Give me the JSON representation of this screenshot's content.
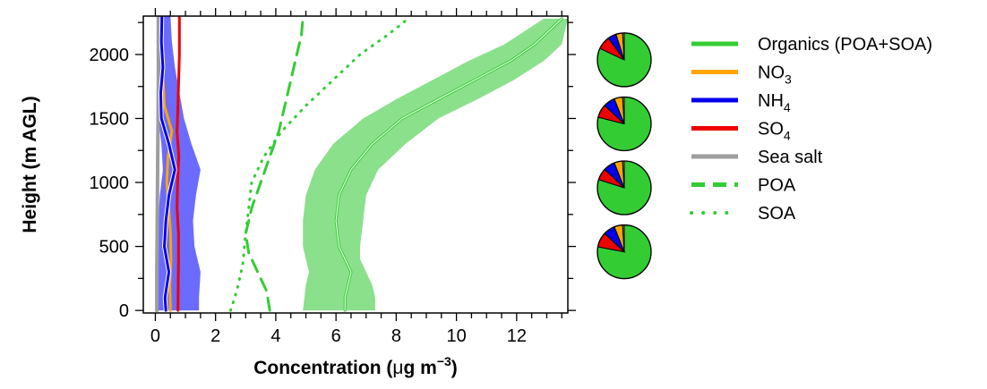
{
  "chart_data": {
    "type": "line",
    "title": "",
    "xlabel": {
      "main": "Concentration (",
      "mu": "μ",
      "g": "g m",
      "sup": "−3",
      "close": ")"
    },
    "ylabel": "Height (m AGL)",
    "xlim": [
      -0.4,
      13.7
    ],
    "ylim": [
      -20,
      2300
    ],
    "xticks": [
      0,
      2,
      4,
      6,
      8,
      10,
      12
    ],
    "yticks": [
      0,
      500,
      1000,
      1500,
      2000
    ],
    "grid": false,
    "legend_position": "right",
    "colors": {
      "organics": "#33cc33",
      "organics_band": "#8be08b",
      "no3": "#ffa500",
      "nh4": "#0000ee",
      "nh4_band": "#6b6bff",
      "so4": "#ee0000",
      "seasalt": "#9e9e9e",
      "axis": "#000000"
    },
    "legend": [
      {
        "key": "organics",
        "label": "Organics (POA+SOA)",
        "style": "solid",
        "color": "#33cc33"
      },
      {
        "key": "no3",
        "label": "NO",
        "sub": "3",
        "style": "solid",
        "color": "#ffa500"
      },
      {
        "key": "nh4",
        "label": "NH",
        "sub": "4",
        "style": "solid",
        "color": "#0000ee"
      },
      {
        "key": "so4",
        "label": "SO",
        "sub": "4",
        "style": "solid",
        "color": "#ee0000"
      },
      {
        "key": "seasalt",
        "label": "Sea salt",
        "style": "solid",
        "color": "#9e9e9e"
      },
      {
        "key": "poa",
        "label": "POA",
        "style": "dashed",
        "color": "#33cc33"
      },
      {
        "key": "soa",
        "label": "SOA",
        "style": "dotted",
        "color": "#33cc33"
      }
    ],
    "series": [
      {
        "key": "organics",
        "style": "solid",
        "x": [
          6.3,
          6.3,
          6.4,
          6.5,
          6.3,
          6.1,
          6.0,
          6.1,
          6.5,
          7.2,
          8.2,
          9.4,
          10.6,
          11.8,
          12.6,
          13.5
        ],
        "y": [
          0,
          100,
          200,
          300,
          400,
          500,
          700,
          900,
          1100,
          1300,
          1500,
          1650,
          1800,
          1950,
          2080,
          2280
        ]
      },
      {
        "key": "organics_band",
        "style": "band",
        "x_low": [
          4.9,
          4.95,
          5.0,
          5.1,
          5.0,
          4.9,
          4.9,
          5.0,
          5.3,
          5.9,
          6.9,
          8.0,
          9.2,
          10.4,
          11.6,
          12.9
        ],
        "x_high": [
          7.3,
          7.3,
          7.2,
          7.0,
          6.8,
          6.8,
          6.9,
          7.0,
          7.4,
          8.3,
          9.4,
          10.7,
          11.9,
          12.9,
          13.5,
          13.7
        ],
        "y": [
          0,
          100,
          200,
          300,
          400,
          500,
          700,
          900,
          1100,
          1300,
          1500,
          1650,
          1800,
          1950,
          2080,
          2280
        ]
      },
      {
        "key": "poa",
        "style": "dashed",
        "x": [
          3.8,
          3.7,
          3.4,
          3.1,
          3.0,
          3.2,
          3.5,
          3.8,
          4.1,
          4.3,
          4.5,
          4.7,
          4.85,
          4.9
        ],
        "y": [
          0,
          150,
          300,
          450,
          600,
          800,
          1000,
          1200,
          1400,
          1600,
          1800,
          2000,
          2150,
          2280
        ]
      },
      {
        "key": "soa",
        "style": "dotted",
        "x": [
          2.5,
          2.7,
          2.9,
          3.0,
          3.1,
          3.2,
          3.6,
          4.2,
          5.0,
          5.9,
          6.8,
          7.7,
          8.4
        ],
        "y": [
          0,
          150,
          350,
          600,
          800,
          1000,
          1200,
          1400,
          1600,
          1800,
          2000,
          2150,
          2280
        ]
      },
      {
        "key": "seasalt",
        "style": "solid",
        "x": [
          0.05,
          0.05,
          0.06,
          0.07,
          0.08,
          0.09,
          0.1,
          0.1
        ],
        "y": [
          0,
          300,
          600,
          900,
          1200,
          1500,
          1800,
          2300
        ]
      },
      {
        "key": "so4",
        "style": "solid",
        "x": [
          0.75,
          0.76,
          0.77,
          0.77,
          0.72,
          0.74,
          0.78,
          0.72,
          0.75,
          0.8,
          0.8
        ],
        "y": [
          0,
          200,
          400,
          600,
          800,
          1000,
          1200,
          1400,
          1600,
          2000,
          2300
        ]
      },
      {
        "key": "no3",
        "style": "solid",
        "x": [
          0.5,
          0.48,
          0.52,
          0.5,
          0.45,
          0.38,
          0.42,
          0.55,
          0.3,
          0.22,
          0.2
        ],
        "y": [
          0,
          200,
          400,
          600,
          800,
          1000,
          1200,
          1400,
          1600,
          2000,
          2300
        ]
      },
      {
        "key": "nh4",
        "style": "solid",
        "x": [
          0.35,
          0.32,
          0.45,
          0.3,
          0.35,
          0.45,
          0.65,
          0.45,
          0.2,
          0.18,
          0.25,
          0.2,
          0.22
        ],
        "y": [
          0,
          100,
          300,
          500,
          700,
          900,
          1100,
          1300,
          1500,
          1700,
          1900,
          2100,
          2300
        ]
      },
      {
        "key": "nh4_band",
        "style": "band",
        "x_low": [
          0.1,
          0.1,
          0.1,
          0.1,
          0.1,
          0.15,
          0.25,
          0.2,
          0.1,
          0.1,
          0.1,
          0.1,
          0.1
        ],
        "x_high": [
          1.45,
          1.45,
          1.5,
          1.3,
          1.25,
          1.35,
          1.5,
          1.2,
          0.95,
          0.8,
          0.65,
          0.55,
          0.5
        ],
        "y": [
          0,
          100,
          300,
          500,
          700,
          900,
          1100,
          1300,
          1500,
          1700,
          1900,
          2100,
          2300
        ]
      }
    ],
    "pies": [
      {
        "height": 2000,
        "slices": [
          {
            "key": "organics",
            "value": 82
          },
          {
            "key": "so4",
            "value": 8
          },
          {
            "key": "nh4",
            "value": 5
          },
          {
            "key": "no3",
            "value": 4
          },
          {
            "key": "seasalt",
            "value": 1
          }
        ]
      },
      {
        "height": 1500,
        "slices": [
          {
            "key": "organics",
            "value": 79
          },
          {
            "key": "so4",
            "value": 8
          },
          {
            "key": "nh4",
            "value": 7
          },
          {
            "key": "no3",
            "value": 5
          },
          {
            "key": "seasalt",
            "value": 1
          }
        ]
      },
      {
        "height": 1000,
        "slices": [
          {
            "key": "organics",
            "value": 80
          },
          {
            "key": "so4",
            "value": 7
          },
          {
            "key": "nh4",
            "value": 7
          },
          {
            "key": "no3",
            "value": 5
          },
          {
            "key": "seasalt",
            "value": 1
          }
        ]
      },
      {
        "height": 500,
        "slices": [
          {
            "key": "organics",
            "value": 78
          },
          {
            "key": "so4",
            "value": 9
          },
          {
            "key": "nh4",
            "value": 7
          },
          {
            "key": "no3",
            "value": 5
          },
          {
            "key": "seasalt",
            "value": 1
          }
        ]
      }
    ]
  }
}
